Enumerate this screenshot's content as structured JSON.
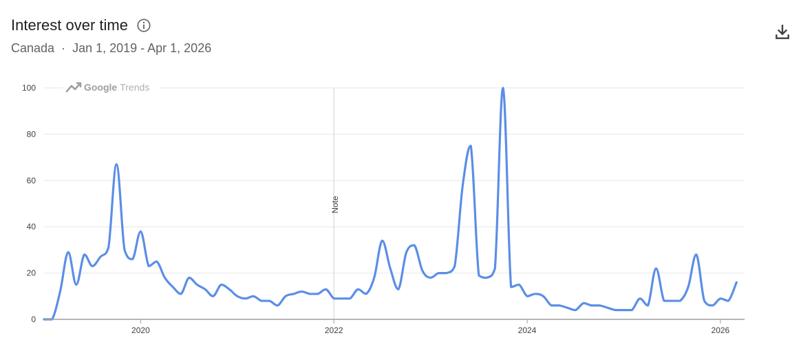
{
  "header": {
    "title": "Interest over time",
    "region": "Canada",
    "separator": "·",
    "date_range": "Jan 1, 2019 - Apr 1, 2026"
  },
  "watermark": {
    "brand": "Google",
    "product": "Trends"
  },
  "note_label": "Note",
  "icons": {
    "info": "info-icon",
    "download": "download-icon",
    "logo": "trending-up-icon"
  },
  "colors": {
    "line": "#5b8ee6",
    "grid": "#e6e6e6",
    "axis": "#9e9e9e"
  },
  "chart_data": {
    "type": "line",
    "x_start": "2019-01",
    "x_end": "2026-03",
    "xlim": [
      "2019-01",
      "2026-04"
    ],
    "ylim": [
      0,
      100
    ],
    "y_ticks": [
      0,
      20,
      40,
      60,
      80,
      100
    ],
    "x_ticks": [
      "2020",
      "2022",
      "2024",
      "2026"
    ],
    "grid": true,
    "note_at": "2022-01",
    "series": [
      {
        "values": [
          0,
          0,
          12,
          29,
          15,
          28,
          23,
          27,
          31,
          67,
          30,
          26,
          38,
          23,
          25,
          18,
          14,
          11,
          18,
          15,
          13,
          10,
          15,
          13,
          10,
          9,
          10,
          8,
          8,
          6,
          10,
          11,
          12,
          11,
          11,
          13,
          9,
          9,
          9,
          13,
          11,
          18,
          34,
          22,
          13,
          29,
          32,
          21,
          18,
          20,
          20,
          23,
          58,
          75,
          19,
          18,
          22,
          100,
          14,
          15,
          10,
          11,
          10,
          6,
          6,
          5,
          4,
          7,
          6,
          6,
          5,
          4,
          4,
          4,
          9,
          6,
          22,
          8,
          8,
          8,
          14,
          28,
          8,
          6,
          9,
          8,
          16
        ]
      }
    ]
  }
}
